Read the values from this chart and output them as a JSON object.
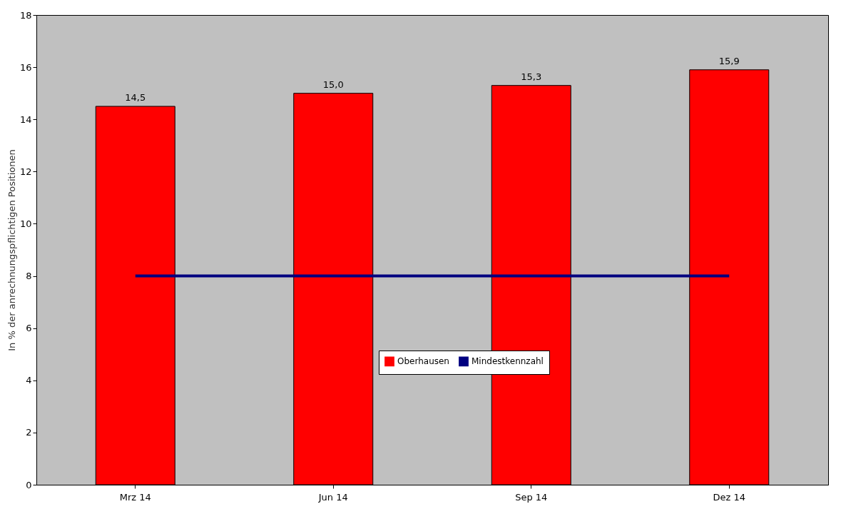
{
  "chart_data": {
    "type": "bar",
    "ylabel": "In % der anrechnungspflichtigen Positionen",
    "categories": [
      "Mrz 14",
      "Jun 14",
      "Sep 14",
      "Dez 14"
    ],
    "series": [
      {
        "name": "Oberhausen",
        "color": "#ff0000",
        "values": [
          14.5,
          15.0,
          15.3,
          15.9
        ],
        "value_labels": [
          "14,5",
          "15,0",
          "15,3",
          "15,9"
        ]
      },
      {
        "name": "Mindestkennzahl",
        "type": "line",
        "color": "#000080",
        "values": [
          8,
          8,
          8,
          8
        ]
      }
    ],
    "ylim": [
      0,
      18
    ],
    "yticks": [
      0,
      2,
      4,
      6,
      8,
      10,
      12,
      14,
      16,
      18
    ],
    "legend": "bottom",
    "grid": false
  }
}
